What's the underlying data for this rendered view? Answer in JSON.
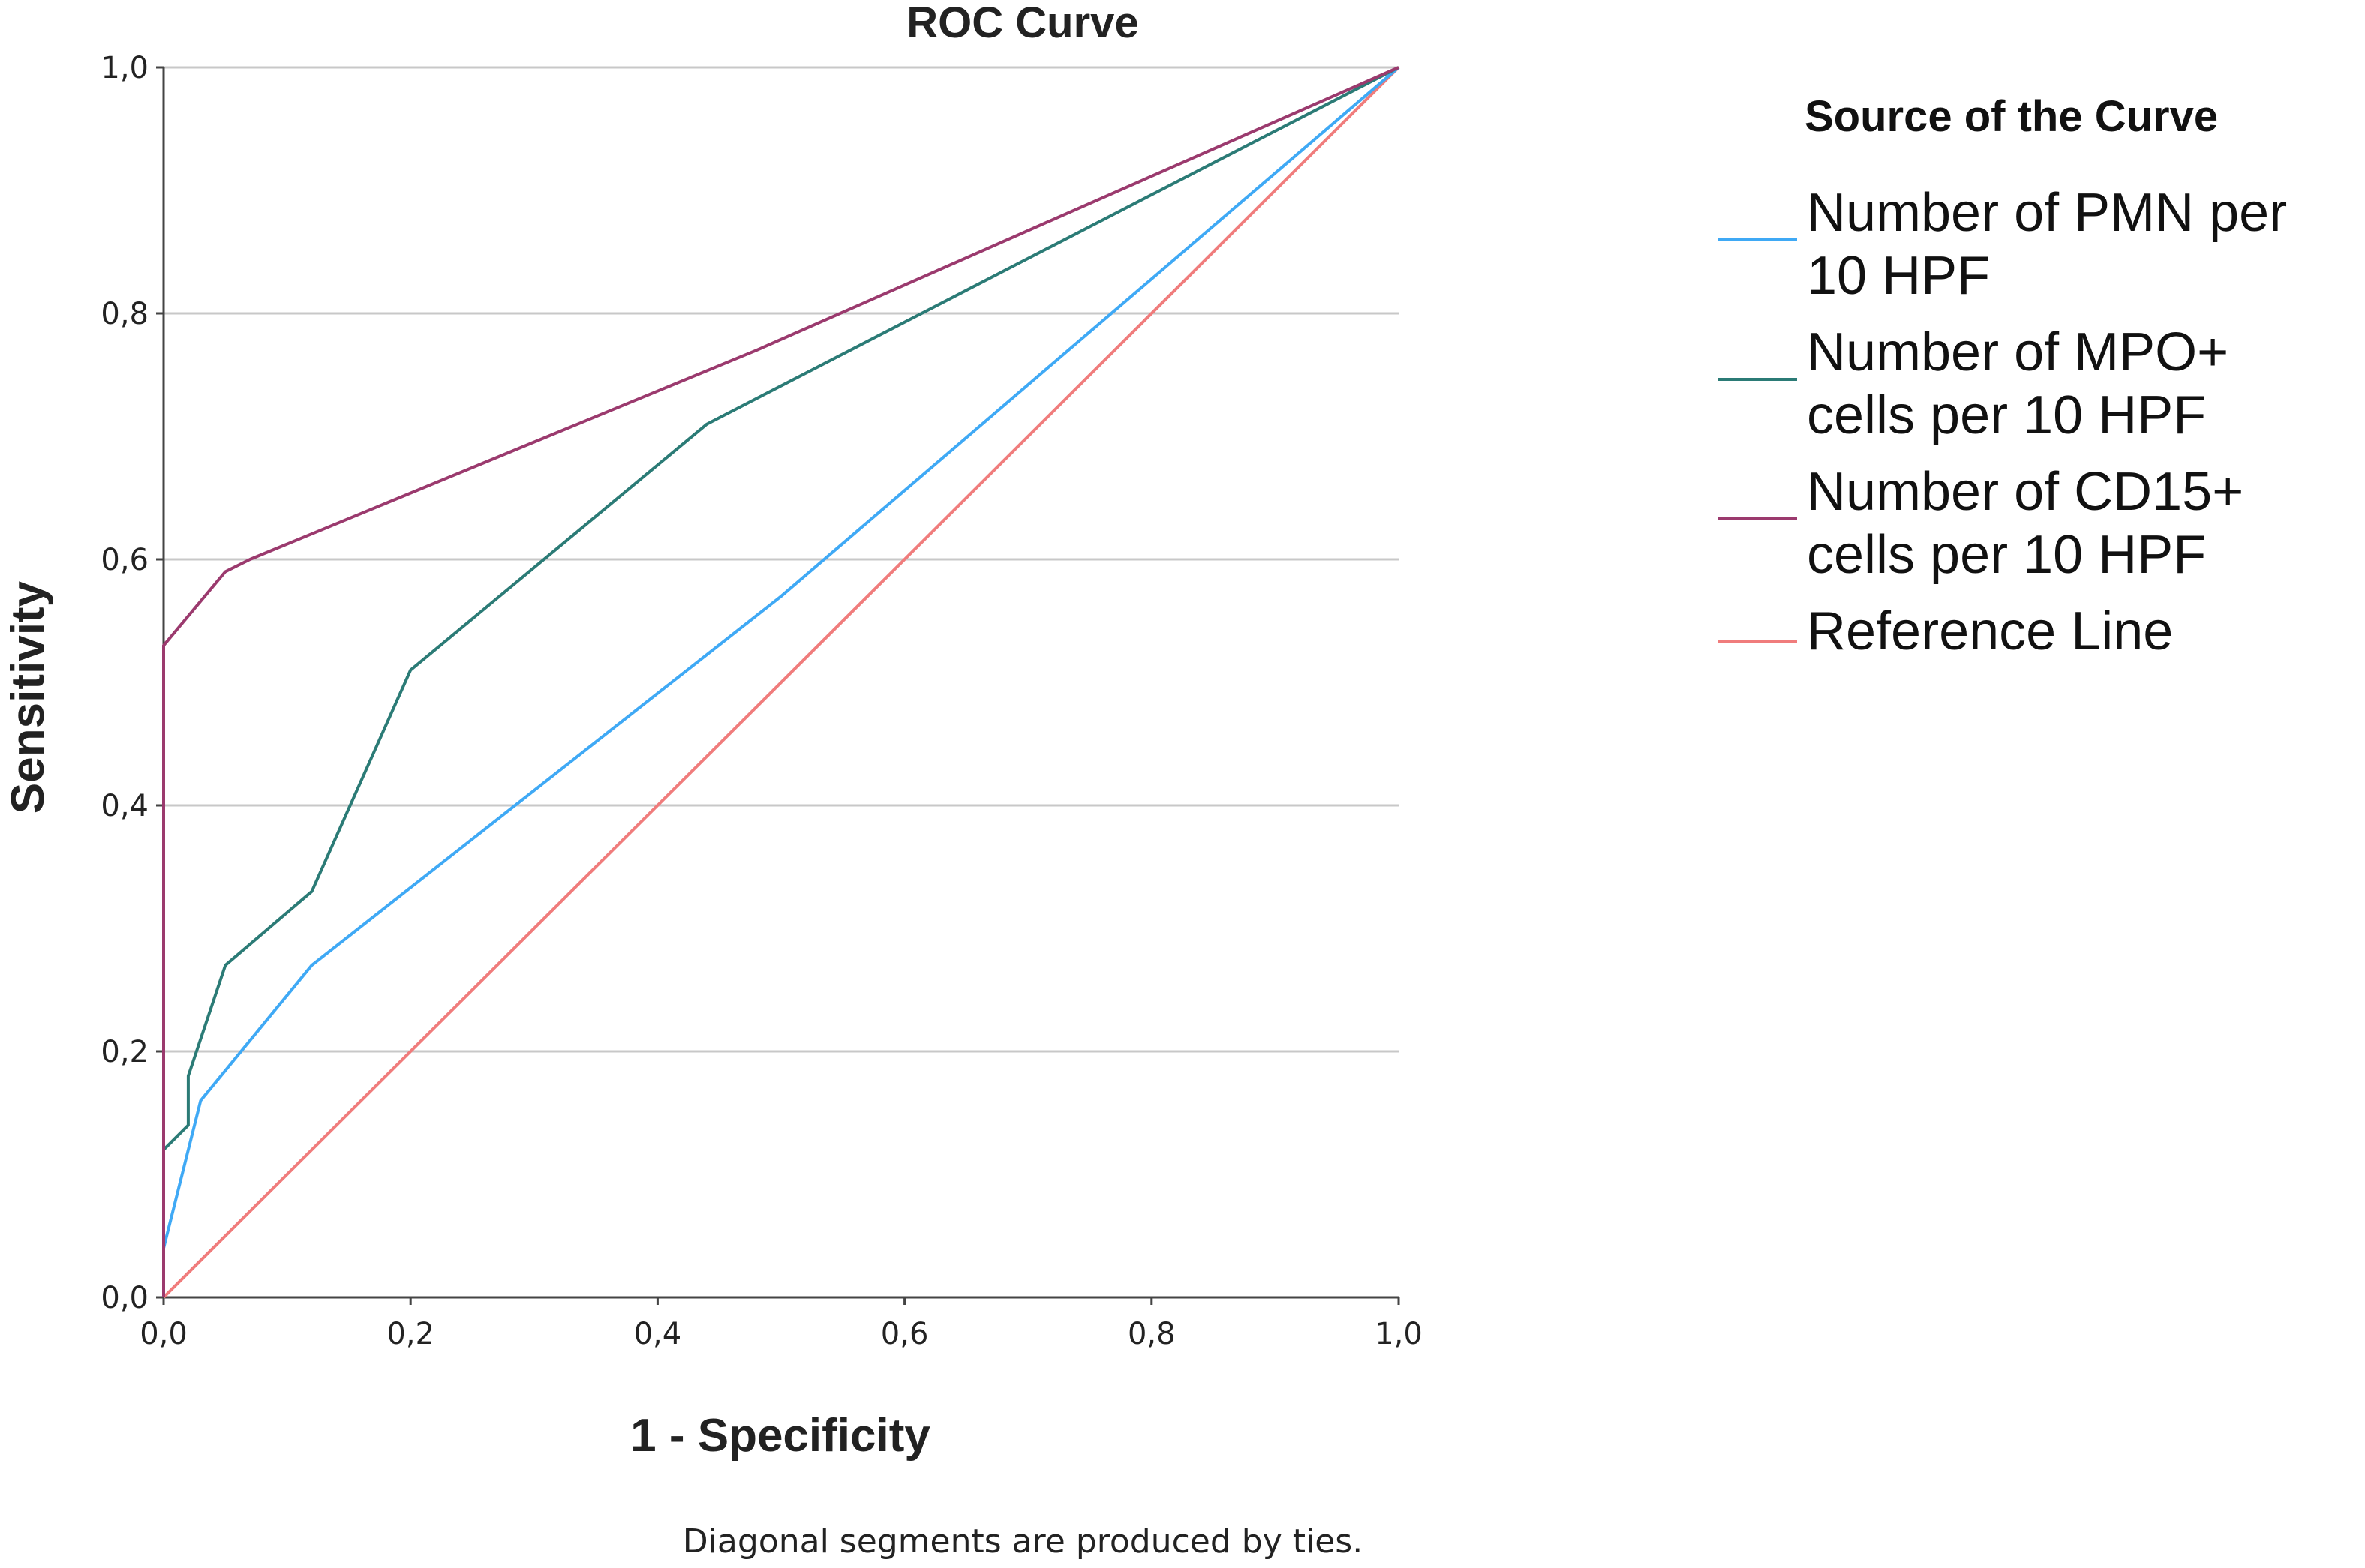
{
  "chart_data": {
    "type": "line",
    "title": "ROC Curve",
    "xlabel": "1 - Specificity",
    "ylabel": "Sensitivity",
    "xlim": [
      0,
      1
    ],
    "ylim": [
      0,
      1
    ],
    "x_ticks": [
      "0,0",
      "0,2",
      "0,4",
      "0,6",
      "0,8",
      "1,0"
    ],
    "y_ticks": [
      "0,0",
      "0,2",
      "0,4",
      "0,6",
      "0,8",
      "1,0"
    ],
    "grid": "horizontal",
    "legend_title": "Source of the Curve",
    "legend_position": "right",
    "footnote": "Diagonal segments are produced by ties.",
    "series": [
      {
        "name": "Number of PMN per 10 HPF",
        "legend_lines": [
          "Number of PMN per",
          "10 HPF"
        ],
        "color": "#3fa9f5",
        "x": [
          0,
          0,
          0.03,
          0.12,
          0.5,
          1.0
        ],
        "y": [
          0,
          0.04,
          0.16,
          0.27,
          0.57,
          1.0
        ]
      },
      {
        "name": "Number of MPO+ cells per 10 HPF",
        "legend_lines": [
          "Number of MPO+",
          "cells per 10 HPF"
        ],
        "color": "#2b7b76",
        "x": [
          0,
          0,
          0.02,
          0.02,
          0.05,
          0.12,
          0.2,
          0.44,
          1.0
        ],
        "y": [
          0,
          0.12,
          0.14,
          0.18,
          0.27,
          0.33,
          0.51,
          0.71,
          1.0
        ]
      },
      {
        "name": "Number of CD15+ cells per 10 HPF",
        "legend_lines": [
          "Number of CD15+",
          "cells per 10 HPF"
        ],
        "color": "#9b3a6e",
        "x": [
          0,
          0,
          0.05,
          0.07,
          0.48,
          1.0
        ],
        "y": [
          0,
          0.53,
          0.59,
          0.6,
          0.77,
          1.0
        ]
      },
      {
        "name": "Reference Line",
        "legend_lines": [
          "Reference Line"
        ],
        "color": "#f07c7c",
        "x": [
          0,
          1
        ],
        "y": [
          0,
          1
        ]
      }
    ]
  }
}
